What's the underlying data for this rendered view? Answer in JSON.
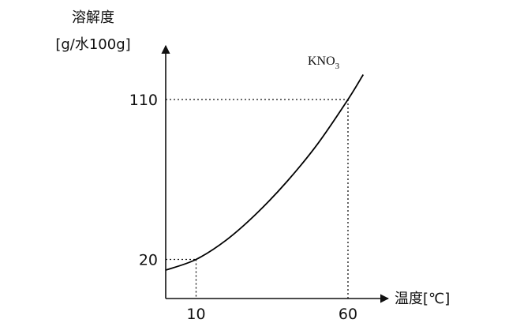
{
  "chart_data": {
    "type": "line",
    "ylabel_line1": "溶解度",
    "ylabel_line2": "[g/水100g]",
    "xlabel": "温度[℃]",
    "x_ticks": [
      {
        "value": 10,
        "label": "10"
      },
      {
        "value": 60,
        "label": "60"
      }
    ],
    "y_ticks": [
      {
        "value": 20,
        "label": "20"
      },
      {
        "value": 110,
        "label": "110"
      }
    ],
    "series": [
      {
        "name_main": "KNO",
        "name_sub": "3",
        "x": [
          0,
          10,
          20,
          30,
          40,
          50,
          60,
          65
        ],
        "y": [
          14,
          20,
          31,
          46,
          64,
          85,
          110,
          124
        ]
      }
    ],
    "reference_points": [
      {
        "x": 10,
        "y": 20
      },
      {
        "x": 60,
        "y": 110
      }
    ],
    "line_color": "#000000",
    "ticks_on_axes": false,
    "grid": false
  }
}
